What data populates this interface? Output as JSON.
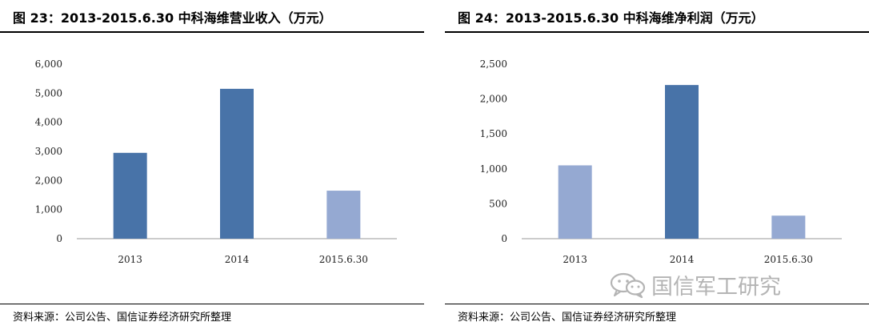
{
  "panels": [
    {
      "title": "图 23：2013-2015.6.30 中科海维营业收入（万元）",
      "source": "资料来源：公司公告、国信证券经济研究所整理"
    },
    {
      "title": "图 24：2013-2015.6.30 中科海维净利润（万元）",
      "source": "资料来源：公司公告、国信证券经济研究所整理"
    }
  ],
  "watermark": {
    "text": "国信军工研究",
    "icon": "wechat-icon"
  },
  "chart_data": [
    {
      "type": "bar",
      "title": "",
      "xlabel": "",
      "ylabel": "",
      "categories": [
        "2013",
        "2014",
        "2015.6.30"
      ],
      "values": [
        2950,
        5150,
        1650
      ],
      "bar_colors": [
        "#4873a8",
        "#4873a8",
        "#95a9d2"
      ],
      "ylim": [
        0,
        6000
      ],
      "yticks": [
        0,
        1000,
        2000,
        3000,
        4000,
        5000,
        6000
      ],
      "ytick_labels": [
        "0",
        "1,000",
        "2,000",
        "3,000",
        "4,000",
        "5,000",
        "6,000"
      ],
      "xtick_labels": [
        "2013",
        "2014",
        "2015.6.30"
      ],
      "grid": false,
      "legend": "none"
    },
    {
      "type": "bar",
      "title": "",
      "xlabel": "",
      "ylabel": "",
      "categories": [
        "2013",
        "2014",
        "2015.6.30"
      ],
      "values": [
        1050,
        2200,
        330
      ],
      "bar_colors": [
        "#95a9d2",
        "#4873a8",
        "#95a9d2"
      ],
      "ylim": [
        0,
        2500
      ],
      "yticks": [
        0,
        500,
        1000,
        1500,
        2000,
        2500
      ],
      "ytick_labels": [
        "0",
        "500",
        "1,000",
        "1,500",
        "2,000",
        "2,500"
      ],
      "xtick_labels": [
        "2013",
        "2014",
        "2015.6.30"
      ],
      "grid": false,
      "legend": "none"
    }
  ]
}
